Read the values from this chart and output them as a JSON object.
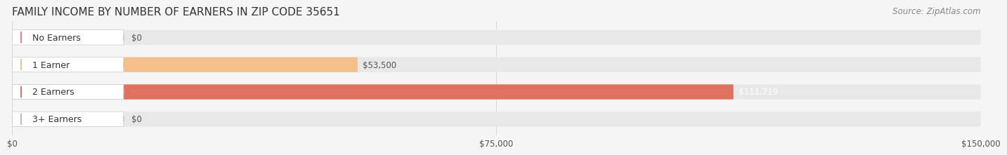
{
  "title": "FAMILY INCOME BY NUMBER OF EARNERS IN ZIP CODE 35651",
  "source": "Source: ZipAtlas.com",
  "categories": [
    "No Earners",
    "1 Earner",
    "2 Earners",
    "3+ Earners"
  ],
  "values": [
    0,
    53500,
    111719,
    0
  ],
  "bar_colors": [
    "#f08080",
    "#f5c08a",
    "#e07060",
    "#a8c0e0"
  ],
  "label_bg_colors": [
    "#f8b0b0",
    "#f5c08a",
    "#e07060",
    "#a8c0e0"
  ],
  "value_labels": [
    "$0",
    "$53,500",
    "$111,719",
    "$0"
  ],
  "xlim": [
    0,
    150000
  ],
  "xticks": [
    0,
    75000,
    150000
  ],
  "xtick_labels": [
    "$0",
    "$75,000",
    "$150,000"
  ],
  "bar_height": 0.55,
  "background_color": "#f5f5f5",
  "bar_bg_color": "#e8e8e8",
  "title_fontsize": 11,
  "source_fontsize": 8.5,
  "label_fontsize": 9,
  "value_fontsize": 8.5
}
